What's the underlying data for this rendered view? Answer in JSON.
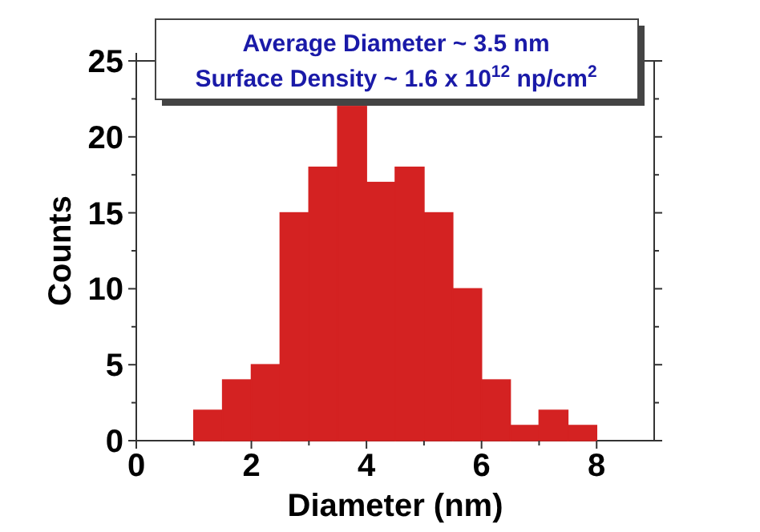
{
  "chart_data": {
    "type": "histogram",
    "xlabel": "Diameter (nm)",
    "ylabel": "Counts",
    "bins": [
      1,
      1.5,
      2,
      2.5,
      3,
      3.5,
      4,
      4.5,
      5,
      5.5,
      6,
      6.5,
      7,
      7.5,
      8
    ],
    "values": [
      2,
      4,
      5,
      15,
      18,
      22,
      17,
      18,
      15,
      10,
      4,
      1,
      2,
      1
    ],
    "color": "#d42222",
    "xlim": [
      0,
      9
    ],
    "xticks": [
      0,
      {
        "value": 1,
        "label": null
      },
      2,
      {
        "value": 3,
        "label": null
      },
      4,
      {
        "value": 5,
        "label": null
      },
      6,
      {
        "value": 7,
        "label": null
      },
      8
    ],
    "ylim": [
      0,
      25
    ],
    "yticks": [
      0,
      {
        "value": 2.5,
        "label": null
      },
      5,
      {
        "value": 7.5,
        "label": null
      },
      10,
      {
        "value": 12.5,
        "label": null
      },
      15,
      {
        "value": 17.5,
        "label": null
      },
      20,
      {
        "value": 22.5,
        "label": null
      },
      25
    ],
    "annotations": [
      "Average Diameter ~ 3.5 nm",
      "Surface Density ~ 1.6 x 10$^{12}$ np/cm$^{2}$"
    ]
  }
}
